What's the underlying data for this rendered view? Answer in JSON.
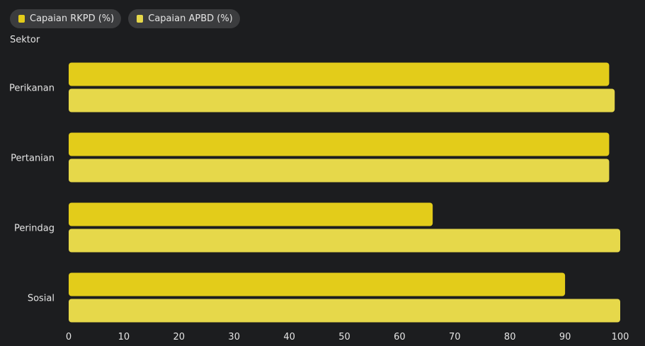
{
  "chart_data": {
    "type": "bar",
    "orientation": "horizontal",
    "ylabel": "Sektor",
    "categories": [
      "Perikanan",
      "Pertanian",
      "Perindag",
      "Sosial"
    ],
    "series": [
      {
        "name": "Capaian RKPD (%)",
        "color": "#e3cc1a",
        "values": [
          98,
          98,
          66,
          90
        ]
      },
      {
        "name": "Capaian APBD (%)",
        "color": "#e6d84a",
        "values": [
          99,
          98,
          100,
          100
        ]
      }
    ],
    "xlim": [
      0,
      100
    ],
    "xticks": [
      0,
      10,
      20,
      30,
      40,
      50,
      60,
      70,
      80,
      90,
      100
    ],
    "grid": false,
    "legend_position": "top-left"
  }
}
